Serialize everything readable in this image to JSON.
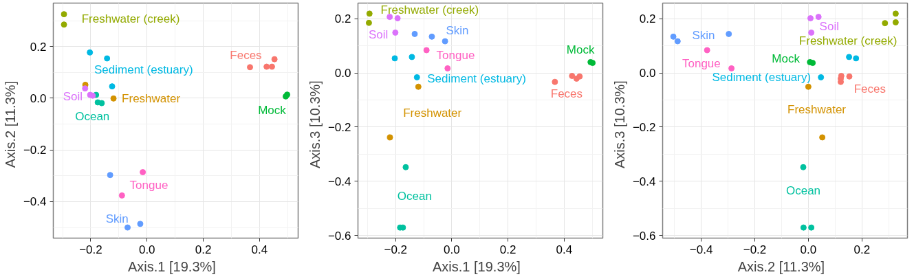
{
  "chart_data": [
    {
      "type": "scatter",
      "xlabel": "Axis.1   [19.3%]",
      "ylabel": "Axis.2   [11.3%]",
      "xlim": [
        -0.333,
        0.537
      ],
      "ylim": [
        -0.541,
        0.368
      ],
      "xticks": [
        {
          "value": -0.2,
          "label": "−0.2"
        },
        {
          "value": 0,
          "label": "0.0"
        },
        {
          "value": 0.2,
          "label": "0.2"
        },
        {
          "value": 0.4,
          "label": "0.4"
        }
      ],
      "yticks": [
        {
          "value": -0.4,
          "label": "−0.4"
        },
        {
          "value": -0.2,
          "label": "−0.2"
        },
        {
          "value": 0,
          "label": "0.0"
        },
        {
          "value": 0.2,
          "label": "0.2"
        }
      ],
      "grid": true,
      "marker": "circle",
      "series": [
        {
          "name": "Feces",
          "color": "#f8766d",
          "x": [
            0.366,
            0.425,
            0.444,
            0.453
          ],
          "values": [
            0.12,
            0.122,
            0.122,
            0.151
          ]
        },
        {
          "name": "Freshwater",
          "color": "#d39200",
          "x": [
            -0.219,
            -0.119
          ],
          "values": [
            0.052,
            -0.001
          ]
        },
        {
          "name": "Freshwater (creek)",
          "color": "#93aa00",
          "x": [
            -0.295,
            -0.295
          ],
          "values": [
            0.325,
            0.285
          ]
        },
        {
          "name": "Mock",
          "color": "#00ba38",
          "x": [
            0.493,
            0.498
          ],
          "values": [
            0.007,
            0.014
          ]
        },
        {
          "name": "Ocean",
          "color": "#00c19f",
          "x": [
            -0.181,
            -0.175,
            -0.161
          ],
          "values": [
            0.013,
            -0.016,
            -0.019
          ]
        },
        {
          "name": "Sediment (estuary)",
          "color": "#00b9e3",
          "x": [
            -0.203,
            -0.142,
            -0.124
          ],
          "values": [
            0.177,
            0.154,
            0.046
          ]
        },
        {
          "name": "Skin",
          "color": "#619cff",
          "x": [
            -0.131,
            -0.069,
            -0.024
          ],
          "values": [
            -0.297,
            -0.5,
            -0.486
          ]
        },
        {
          "name": "Soil",
          "color": "#db72fb",
          "x": [
            -0.22,
            -0.202,
            -0.193
          ],
          "values": [
            0.038,
            0.013,
            0.01
          ]
        },
        {
          "name": "Tongue",
          "color": "#ff61c3",
          "x": [
            -0.015,
            -0.089
          ],
          "values": [
            -0.286,
            -0.376
          ]
        }
      ]
    },
    {
      "type": "scatter",
      "xlabel": "Axis.1   [19.3%]",
      "ylabel": "Axis.3   [10.3%]",
      "xlim": [
        -0.334,
        0.5375
      ],
      "ylim": [
        -0.61,
        0.258
      ],
      "xticks": [
        {
          "value": -0.2,
          "label": "−0.2"
        },
        {
          "value": 0,
          "label": "0.0"
        },
        {
          "value": 0.2,
          "label": "0.2"
        },
        {
          "value": 0.4,
          "label": "0.4"
        }
      ],
      "yticks": [
        {
          "value": -0.6,
          "label": "−0.6"
        },
        {
          "value": -0.4,
          "label": "−0.4"
        },
        {
          "value": -0.2,
          "label": "−0.2"
        },
        {
          "value": 0,
          "label": "0.0"
        },
        {
          "value": 0.2,
          "label": "0.2"
        }
      ],
      "grid": true,
      "marker": "circle",
      "series": [
        {
          "name": "Feces",
          "color": "#f8766d",
          "x": [
            0.367,
            0.428,
            0.444,
            0.455
          ],
          "values": [
            -0.033,
            -0.011,
            -0.021,
            -0.013
          ]
        },
        {
          "name": "Freshwater",
          "color": "#d39200",
          "x": [
            -0.119,
            -0.22
          ],
          "values": [
            -0.051,
            -0.238
          ]
        },
        {
          "name": "Freshwater (creek)",
          "color": "#93aa00",
          "x": [
            -0.293,
            -0.295
          ],
          "values": [
            0.219,
            0.185
          ]
        },
        {
          "name": "Mock",
          "color": "#00ba38",
          "x": [
            0.494,
            0.501
          ],
          "values": [
            0.04,
            0.037
          ]
        },
        {
          "name": "Ocean",
          "color": "#00c19f",
          "x": [
            -0.164,
            -0.184,
            -0.174
          ],
          "values": [
            -0.348,
            -0.571,
            -0.571
          ]
        },
        {
          "name": "Sediment (estuary)",
          "color": "#00b9e3",
          "x": [
            -0.203,
            -0.142,
            -0.124
          ],
          "values": [
            0.054,
            0.059,
            -0.016
          ]
        },
        {
          "name": "Skin",
          "color": "#619cff",
          "x": [
            -0.132,
            -0.071,
            -0.024
          ],
          "values": [
            0.144,
            0.134,
            0.117
          ]
        },
        {
          "name": "Soil",
          "color": "#db72fb",
          "x": [
            -0.221,
            -0.193,
            -0.201
          ],
          "values": [
            0.207,
            0.202,
            0.149
          ]
        },
        {
          "name": "Tongue",
          "color": "#ff61c3",
          "x": [
            -0.09,
            -0.015
          ],
          "values": [
            0.084,
            0.017
          ]
        }
      ]
    },
    {
      "type": "scatter",
      "xlabel": "Axis.2   [11.3%]",
      "ylabel": "Axis.3   [10.3%]",
      "xlim": [
        -0.544,
        0.37
      ],
      "ylim": [
        -0.61,
        0.258
      ],
      "xticks": [
        {
          "value": -0.4,
          "label": "−0.4"
        },
        {
          "value": -0.2,
          "label": "−0.2"
        },
        {
          "value": 0,
          "label": "0.0"
        },
        {
          "value": 0.2,
          "label": "0.2"
        }
      ],
      "yticks": [
        {
          "value": -0.6,
          "label": "−0.6"
        },
        {
          "value": -0.4,
          "label": "−0.4"
        },
        {
          "value": -0.2,
          "label": "−0.2"
        },
        {
          "value": 0,
          "label": "0.0"
        },
        {
          "value": 0.2,
          "label": "0.2"
        }
      ],
      "grid": true,
      "marker": "circle",
      "series": [
        {
          "name": "Feces",
          "color": "#f8766d",
          "x": [
            0.123,
            0.121,
            0.121,
            0.153
          ],
          "values": [
            -0.011,
            -0.021,
            -0.033,
            -0.013
          ]
        },
        {
          "name": "Freshwater",
          "color": "#d39200",
          "x": [
            0.0,
            0.052
          ],
          "values": [
            -0.051,
            -0.238
          ]
        },
        {
          "name": "Freshwater (creek)",
          "color": "#93aa00",
          "x": [
            0.286,
            0.326,
            0.326
          ],
          "values": [
            0.184,
            0.219,
            0.187
          ]
        },
        {
          "name": "Mock",
          "color": "#00ba38",
          "x": [
            0.006,
            0.016
          ],
          "values": [
            0.04,
            0.037
          ]
        },
        {
          "name": "Ocean",
          "color": "#00c19f",
          "x": [
            -0.019,
            -0.018,
            0.011
          ],
          "values": [
            -0.348,
            -0.571,
            -0.571
          ]
        },
        {
          "name": "Sediment (estuary)",
          "color": "#00b9e3",
          "x": [
            0.152,
            0.178,
            0.047
          ],
          "values": [
            0.059,
            0.054,
            -0.016
          ]
        },
        {
          "name": "Skin",
          "color": "#619cff",
          "x": [
            -0.504,
            -0.488,
            -0.297
          ],
          "values": [
            0.134,
            0.117,
            0.144
          ]
        },
        {
          "name": "Soil",
          "color": "#db72fb",
          "x": [
            0.008,
            0.038,
            0.011
          ],
          "values": [
            0.202,
            0.207,
            0.149
          ]
        },
        {
          "name": "Tongue",
          "color": "#ff61c3",
          "x": [
            -0.378,
            -0.287
          ],
          "values": [
            0.084,
            0.017
          ]
        }
      ]
    }
  ]
}
